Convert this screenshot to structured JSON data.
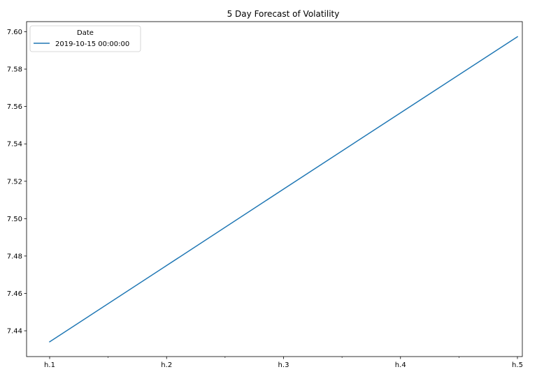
{
  "chart_data": {
    "type": "line",
    "title": "5 Day Forecast of Volatility",
    "xlabel": "",
    "ylabel": "",
    "categories": [
      "h.1",
      "h.2",
      "h.3",
      "h.4",
      "h.5"
    ],
    "series": [
      {
        "name": "2019-10-15 00:00:00",
        "color": "#1f77b4",
        "values": [
          7.4341,
          7.4749,
          7.5158,
          7.5566,
          7.5973
        ]
      }
    ],
    "ylim": [
      7.4262,
      7.6054
    ],
    "yticks": [
      "7.44",
      "7.46",
      "7.48",
      "7.50",
      "7.52",
      "7.54",
      "7.56",
      "7.58",
      "7.60"
    ],
    "legend": {
      "title": "Date",
      "placement": "upper-left"
    },
    "grid": false
  }
}
